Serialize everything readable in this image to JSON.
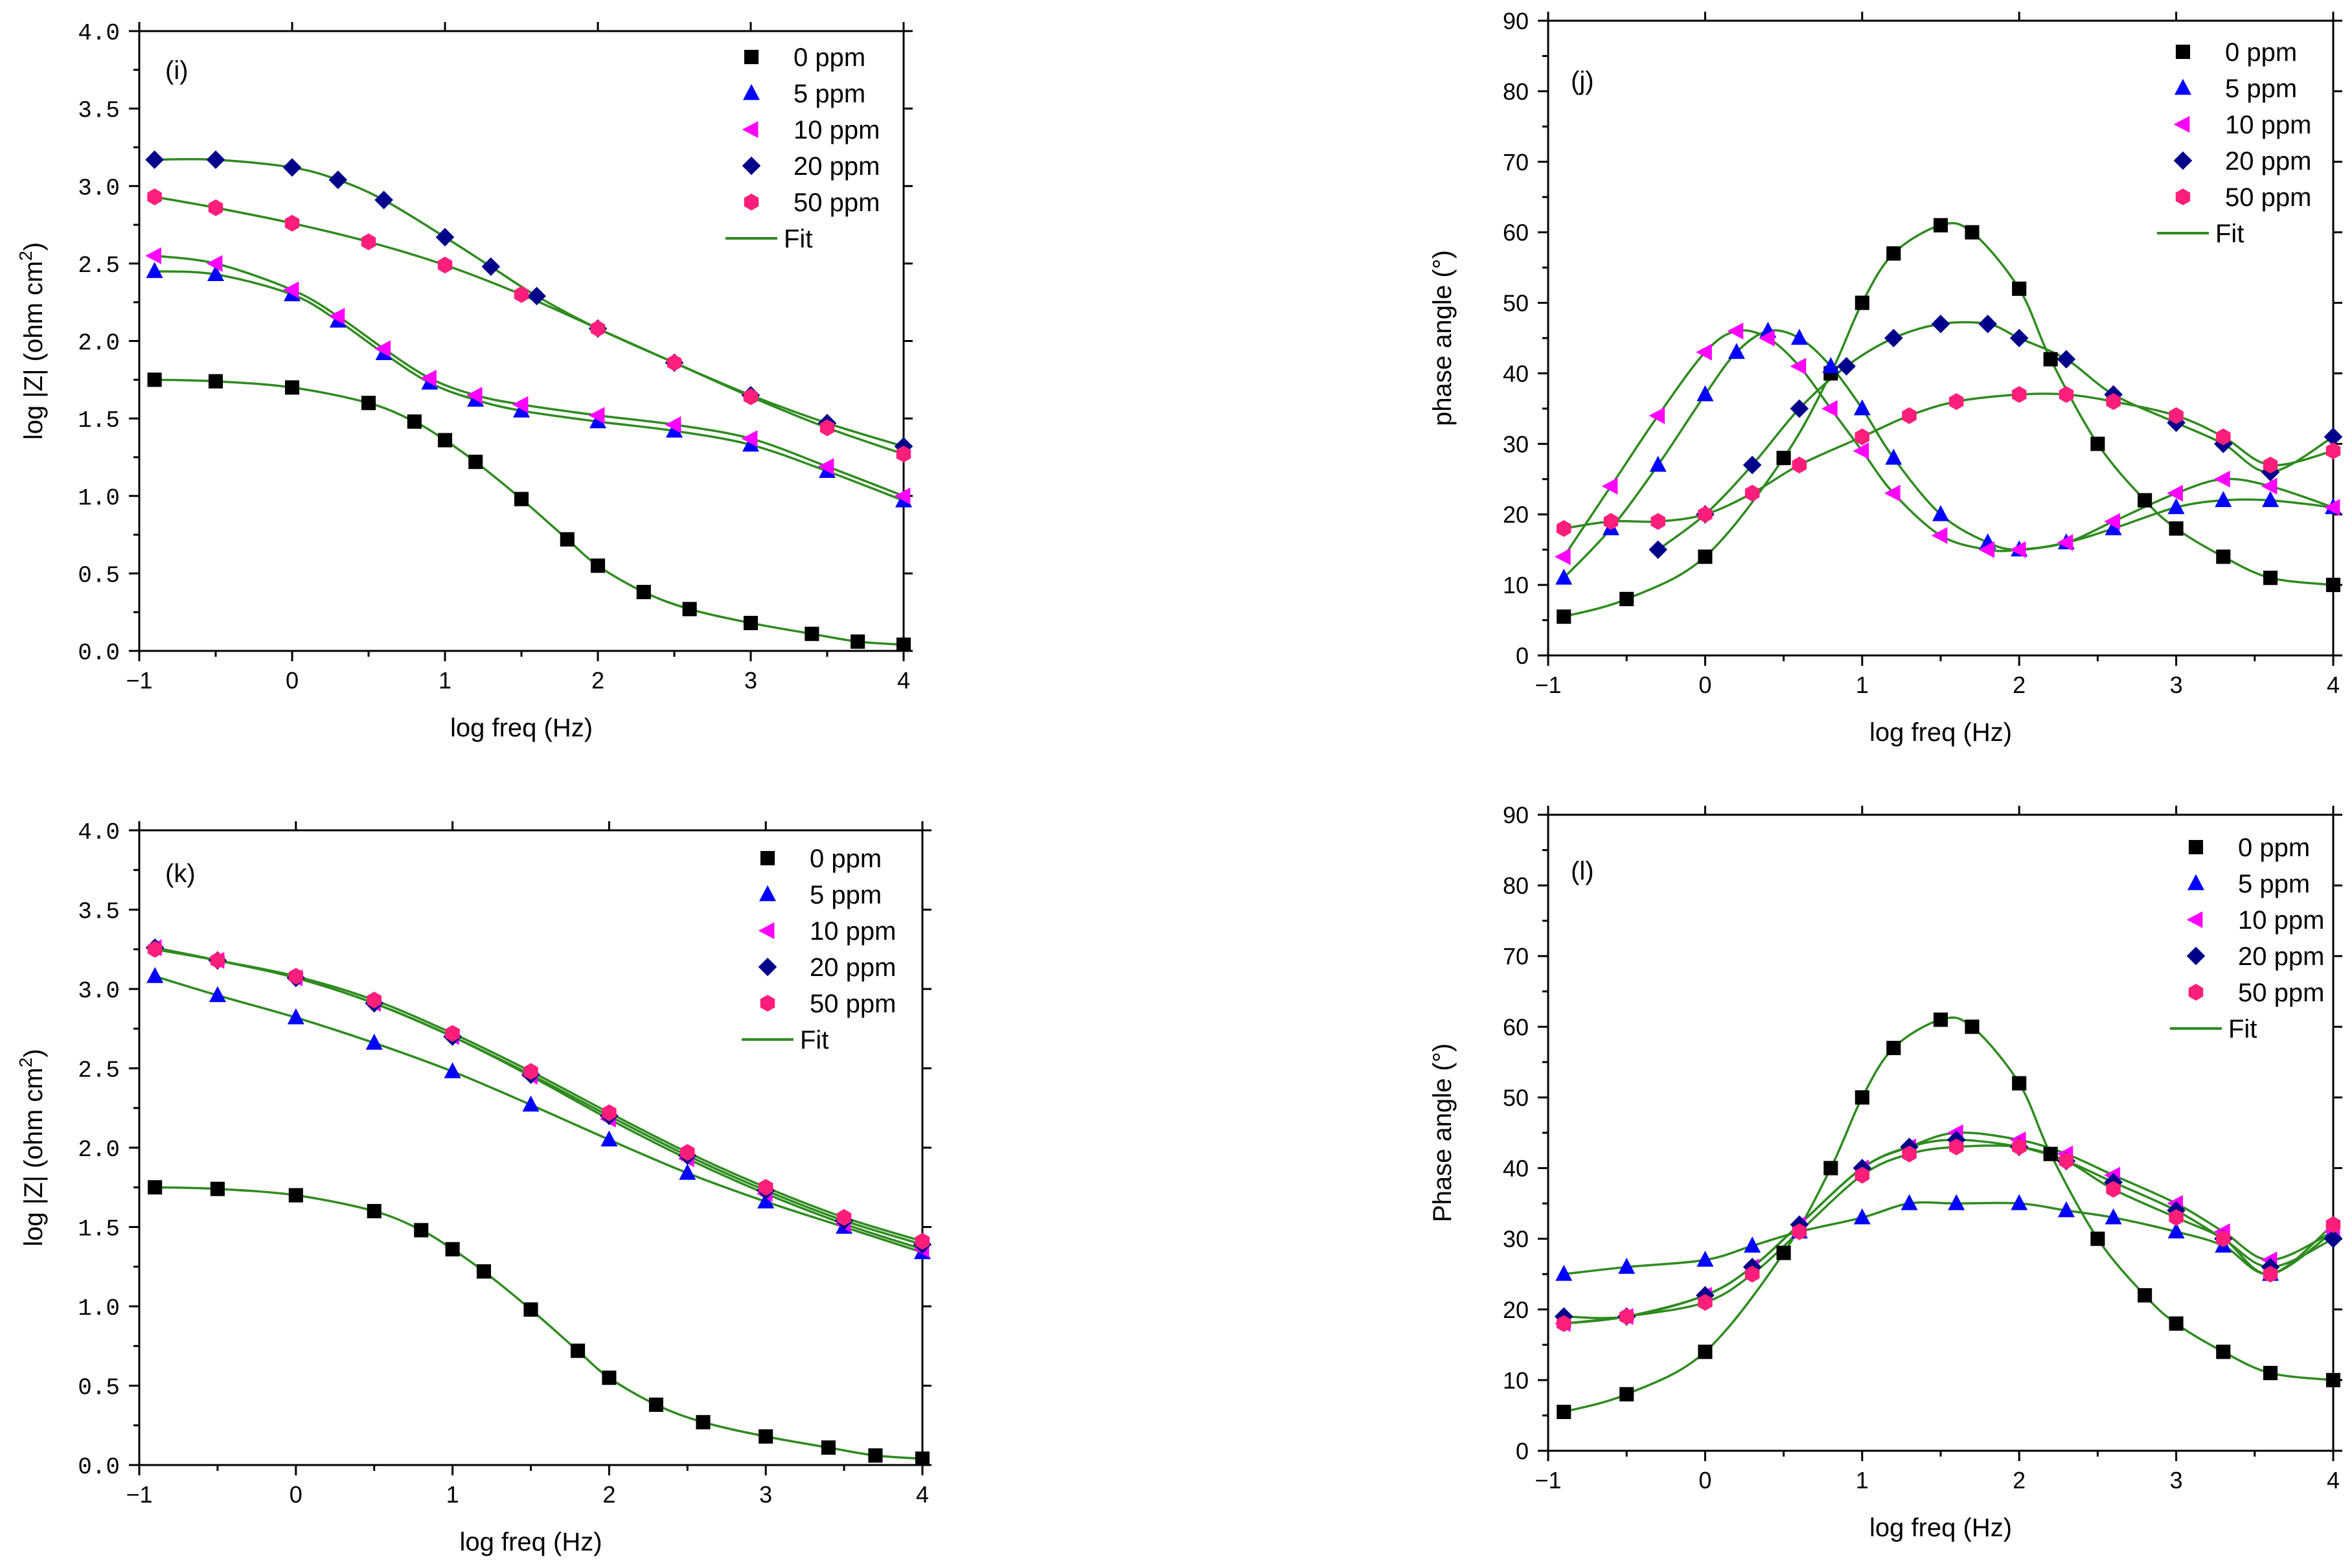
{
  "chart_data": [
    {
      "id": "i",
      "type": "scatter",
      "panel_label": "(i)",
      "xlabel": "log freq (Hz)",
      "ylabel_main": "log |Z| (ohm cm",
      "ylabel_sup": "2",
      "ylabel_end": ")",
      "xlim": [
        -1,
        4
      ],
      "ylim": [
        0,
        4
      ],
      "xticks": [
        -1,
        0,
        1,
        2,
        3,
        4
      ],
      "xtick_labels": [
        "−1",
        "0",
        "1",
        "2",
        "3",
        "4"
      ],
      "yticks": [
        0,
        0.5,
        1,
        1.5,
        2,
        2.5,
        3,
        3.5,
        4
      ],
      "ytick_labels": [
        "0.0",
        "0.5",
        "1.0",
        "1.5",
        "2.0",
        "2.5",
        "3.0",
        "3.5",
        "4.0"
      ],
      "legend": [
        "0 ppm",
        "5 ppm",
        "10 ppm",
        "20 ppm",
        "50 ppm",
        "Fit"
      ],
      "legend_position": "top-right",
      "series": [
        {
          "name": "0 ppm",
          "marker": "square",
          "color": "#000000",
          "x": [
            -0.9,
            -0.5,
            0,
            0.5,
            0.8,
            1,
            1.2,
            1.5,
            1.8,
            2,
            2.3,
            2.6,
            3,
            3.4,
            3.7,
            4
          ],
          "y": [
            1.75,
            1.74,
            1.7,
            1.6,
            1.48,
            1.36,
            1.22,
            0.98,
            0.72,
            0.55,
            0.38,
            0.27,
            0.18,
            0.11,
            0.06,
            0.04
          ]
        },
        {
          "name": "5 ppm",
          "marker": "triangle-up",
          "color": "#0000ff",
          "x": [
            -0.9,
            -0.5,
            0,
            0.3,
            0.6,
            0.9,
            1.2,
            1.5,
            2,
            2.5,
            3,
            3.5,
            4
          ],
          "y": [
            2.45,
            2.43,
            2.3,
            2.13,
            1.92,
            1.73,
            1.62,
            1.55,
            1.48,
            1.42,
            1.33,
            1.16,
            0.97
          ]
        },
        {
          "name": "10 ppm",
          "marker": "triangle-left",
          "color": "#ff00ff",
          "x": [
            -0.9,
            -0.5,
            0,
            0.3,
            0.6,
            0.9,
            1.2,
            1.5,
            2,
            2.5,
            3,
            3.5,
            4
          ],
          "y": [
            2.55,
            2.5,
            2.33,
            2.16,
            1.95,
            1.76,
            1.65,
            1.59,
            1.52,
            1.46,
            1.37,
            1.19,
            1.0
          ]
        },
        {
          "name": "20 ppm",
          "marker": "diamond",
          "color": "#00008b",
          "x": [
            -0.9,
            -0.5,
            0,
            0.3,
            0.6,
            1,
            1.3,
            1.6,
            2,
            2.5,
            3,
            3.5,
            4
          ],
          "y": [
            3.17,
            3.17,
            3.12,
            3.04,
            2.91,
            2.67,
            2.48,
            2.29,
            2.08,
            1.86,
            1.65,
            1.47,
            1.32
          ]
        },
        {
          "name": "50 ppm",
          "marker": "hexagon",
          "color": "#ff1f7a",
          "x": [
            -0.9,
            -0.5,
            0,
            0.5,
            1,
            1.5,
            2,
            2.5,
            3,
            3.5,
            4
          ],
          "y": [
            2.93,
            2.86,
            2.76,
            2.64,
            2.49,
            2.3,
            2.08,
            1.86,
            1.64,
            1.44,
            1.27
          ]
        }
      ]
    },
    {
      "id": "j",
      "type": "scatter",
      "panel_label": "(j)",
      "xlabel": "log freq (Hz)",
      "ylabel_main": "phase angle (°)",
      "xlim": [
        -1,
        4
      ],
      "ylim": [
        0,
        90
      ],
      "xticks": [
        -1,
        0,
        1,
        2,
        3,
        4
      ],
      "xtick_labels": [
        "−1",
        "0",
        "1",
        "2",
        "3",
        "4"
      ],
      "yticks": [
        0,
        10,
        20,
        30,
        40,
        50,
        60,
        70,
        80,
        90
      ],
      "ytick_labels": [
        "0",
        "10",
        "20",
        "30",
        "40",
        "50",
        "60",
        "70",
        "80",
        "90"
      ],
      "legend": [
        "0 ppm",
        "5 ppm",
        "10 ppm",
        "20 ppm",
        "50 ppm",
        "Fit"
      ],
      "legend_position": "top-right",
      "series": [
        {
          "name": "0 ppm",
          "marker": "square",
          "color": "#000000",
          "x": [
            -0.9,
            -0.5,
            0,
            0.5,
            0.8,
            1,
            1.2,
            1.5,
            1.7,
            2,
            2.2,
            2.5,
            2.8,
            3,
            3.3,
            3.6,
            4
          ],
          "y": [
            5.5,
            8,
            14,
            28,
            40,
            50,
            57,
            61,
            60,
            52,
            42,
            30,
            22,
            18,
            14,
            11,
            10
          ]
        },
        {
          "name": "5 ppm",
          "marker": "triangle-up",
          "color": "#0000ff",
          "x": [
            -0.9,
            -0.6,
            -0.3,
            0,
            0.2,
            0.4,
            0.6,
            0.8,
            1,
            1.2,
            1.5,
            1.8,
            2,
            2.3,
            2.6,
            3,
            3.3,
            3.6,
            4
          ],
          "y": [
            11,
            18,
            27,
            37,
            43,
            46,
            45,
            41,
            35,
            28,
            20,
            16,
            15,
            16,
            18,
            21,
            22,
            22,
            21
          ]
        },
        {
          "name": "10 ppm",
          "marker": "triangle-left",
          "color": "#ff00ff",
          "x": [
            -0.9,
            -0.6,
            -0.3,
            0,
            0.2,
            0.4,
            0.6,
            0.8,
            1,
            1.2,
            1.5,
            1.8,
            2,
            2.3,
            2.6,
            3,
            3.3,
            3.6,
            4
          ],
          "y": [
            14,
            24,
            34,
            43,
            46,
            45,
            41,
            35,
            29,
            23,
            17,
            15,
            15,
            16,
            19,
            23,
            25,
            24,
            21
          ]
        },
        {
          "name": "20 ppm",
          "marker": "diamond",
          "color": "#00008b",
          "x": [
            -0.3,
            0,
            0.3,
            0.6,
            0.9,
            1.2,
            1.5,
            1.8,
            2,
            2.3,
            2.6,
            3,
            3.3,
            3.6,
            4
          ],
          "y": [
            15,
            20,
            27,
            35,
            41,
            45,
            47,
            47,
            45,
            42,
            37,
            33,
            30,
            26,
            31
          ]
        },
        {
          "name": "50 ppm",
          "marker": "hexagon",
          "color": "#ff1f7a",
          "x": [
            -0.9,
            -0.6,
            -0.3,
            0,
            0.3,
            0.6,
            1,
            1.3,
            1.6,
            2,
            2.3,
            2.6,
            3,
            3.3,
            3.6,
            4
          ],
          "y": [
            18,
            19,
            19,
            20,
            23,
            27,
            31,
            34,
            36,
            37,
            37,
            36,
            34,
            31,
            27,
            29
          ]
        }
      ]
    },
    {
      "id": "k",
      "type": "scatter",
      "panel_label": "(k)",
      "xlabel": "log freq (Hz)",
      "ylabel_main": "log |Z| (ohm cm",
      "ylabel_sup": "2",
      "ylabel_end": ")",
      "xlim": [
        -1,
        4
      ],
      "ylim": [
        0,
        4
      ],
      "xticks": [
        -1,
        0,
        1,
        2,
        3,
        4
      ],
      "xtick_labels": [
        "−1",
        "0",
        "1",
        "2",
        "3",
        "4"
      ],
      "yticks": [
        0,
        0.5,
        1,
        1.5,
        2,
        2.5,
        3,
        3.5,
        4
      ],
      "ytick_labels": [
        "0.0",
        "0.5",
        "1.0",
        "1.5",
        "2.0",
        "2.5",
        "3.0",
        "3.5",
        "4.0"
      ],
      "legend": [
        "0 ppm",
        "5 ppm",
        "10 ppm",
        "20 ppm",
        "50 ppm",
        "Fit"
      ],
      "legend_position": "top-right",
      "series": [
        {
          "name": "0 ppm",
          "marker": "square",
          "color": "#000000",
          "x": [
            -0.9,
            -0.5,
            0,
            0.5,
            0.8,
            1,
            1.2,
            1.5,
            1.8,
            2,
            2.3,
            2.6,
            3,
            3.4,
            3.7,
            4
          ],
          "y": [
            1.75,
            1.74,
            1.7,
            1.6,
            1.48,
            1.36,
            1.22,
            0.98,
            0.72,
            0.55,
            0.38,
            0.27,
            0.18,
            0.11,
            0.06,
            0.04
          ]
        },
        {
          "name": "5 ppm",
          "marker": "triangle-up",
          "color": "#0000ff",
          "x": [
            -0.9,
            -0.5,
            0,
            0.5,
            1,
            1.5,
            2,
            2.5,
            3,
            3.5,
            4
          ],
          "y": [
            3.08,
            2.96,
            2.82,
            2.66,
            2.48,
            2.27,
            2.05,
            1.84,
            1.66,
            1.5,
            1.34
          ]
        },
        {
          "name": "10 ppm",
          "marker": "triangle-left",
          "color": "#ff00ff",
          "x": [
            -0.9,
            -0.5,
            0,
            0.5,
            1,
            1.5,
            2,
            2.5,
            3,
            3.5,
            4
          ],
          "y": [
            3.26,
            3.18,
            3.07,
            2.91,
            2.7,
            2.45,
            2.18,
            1.93,
            1.71,
            1.52,
            1.36
          ]
        },
        {
          "name": "20 ppm",
          "marker": "diamond",
          "color": "#00008b",
          "x": [
            -0.9,
            -0.5,
            0,
            0.5,
            1,
            1.5,
            2,
            2.5,
            3,
            3.5,
            4
          ],
          "y": [
            3.26,
            3.18,
            3.07,
            2.91,
            2.7,
            2.46,
            2.2,
            1.95,
            1.73,
            1.54,
            1.39
          ]
        },
        {
          "name": "50 ppm",
          "marker": "hexagon",
          "color": "#ff1f7a",
          "x": [
            -0.9,
            -0.5,
            0,
            0.5,
            1,
            1.5,
            2,
            2.5,
            3,
            3.5,
            4
          ],
          "y": [
            3.25,
            3.18,
            3.08,
            2.93,
            2.72,
            2.48,
            2.22,
            1.97,
            1.75,
            1.56,
            1.41
          ]
        }
      ]
    },
    {
      "id": "l",
      "type": "scatter",
      "panel_label": "(l)",
      "xlabel": "log freq (Hz)",
      "ylabel_main": "Phase angle (°)",
      "xlim": [
        -1,
        4
      ],
      "ylim": [
        0,
        90
      ],
      "xticks": [
        -1,
        0,
        1,
        2,
        3,
        4
      ],
      "xtick_labels": [
        "−1",
        "0",
        "1",
        "2",
        "3",
        "4"
      ],
      "yticks": [
        0,
        10,
        20,
        30,
        40,
        50,
        60,
        70,
        80,
        90
      ],
      "ytick_labels": [
        "0",
        "10",
        "20",
        "30",
        "40",
        "50",
        "60",
        "70",
        "80",
        "90"
      ],
      "legend": [
        "0 ppm",
        "5 ppm",
        "10 ppm",
        "20 ppm",
        "50 ppm",
        "Fit"
      ],
      "legend_position": "top-right",
      "series": [
        {
          "name": "0 ppm",
          "marker": "square",
          "color": "#000000",
          "x": [
            -0.9,
            -0.5,
            0,
            0.5,
            0.8,
            1,
            1.2,
            1.5,
            1.7,
            2,
            2.2,
            2.5,
            2.8,
            3,
            3.3,
            3.6,
            4
          ],
          "y": [
            5.5,
            8,
            14,
            28,
            40,
            50,
            57,
            61,
            60,
            52,
            42,
            30,
            22,
            18,
            14,
            11,
            10
          ]
        },
        {
          "name": "5 ppm",
          "marker": "triangle-up",
          "color": "#0000ff",
          "x": [
            -0.9,
            -0.5,
            0,
            0.3,
            0.6,
            1,
            1.3,
            1.6,
            2,
            2.3,
            2.6,
            3,
            3.3,
            3.6,
            4
          ],
          "y": [
            25,
            26,
            27,
            29,
            31,
            33,
            35,
            35,
            35,
            34,
            33,
            31,
            29,
            25,
            31
          ]
        },
        {
          "name": "10 ppm",
          "marker": "triangle-left",
          "color": "#ff00ff",
          "x": [
            -0.9,
            -0.5,
            0,
            0.3,
            0.6,
            1,
            1.3,
            1.6,
            2,
            2.3,
            2.6,
            3,
            3.3,
            3.6,
            4
          ],
          "y": [
            18,
            19,
            22,
            26,
            32,
            40,
            43,
            45,
            44,
            42,
            39,
            35,
            31,
            27,
            31
          ]
        },
        {
          "name": "20 ppm",
          "marker": "diamond",
          "color": "#00008b",
          "x": [
            -0.9,
            -0.5,
            0,
            0.3,
            0.6,
            1,
            1.3,
            1.6,
            2,
            2.3,
            2.6,
            3,
            3.3,
            3.6,
            4
          ],
          "y": [
            19,
            19,
            22,
            26,
            32,
            40,
            43,
            44,
            43,
            41,
            38,
            34,
            30,
            26,
            30
          ]
        },
        {
          "name": "50 ppm",
          "marker": "hexagon",
          "color": "#ff1f7a",
          "x": [
            -0.9,
            -0.5,
            0,
            0.3,
            0.6,
            1,
            1.3,
            1.6,
            2,
            2.3,
            2.6,
            3,
            3.3,
            3.6,
            4
          ],
          "y": [
            18,
            19,
            21,
            25,
            31,
            39,
            42,
            43,
            43,
            41,
            37,
            33,
            30,
            25,
            32
          ]
        }
      ]
    }
  ],
  "colors": {
    "fit": "#2e8b1e",
    "axis": "#000000",
    "background": "#ffffff"
  }
}
